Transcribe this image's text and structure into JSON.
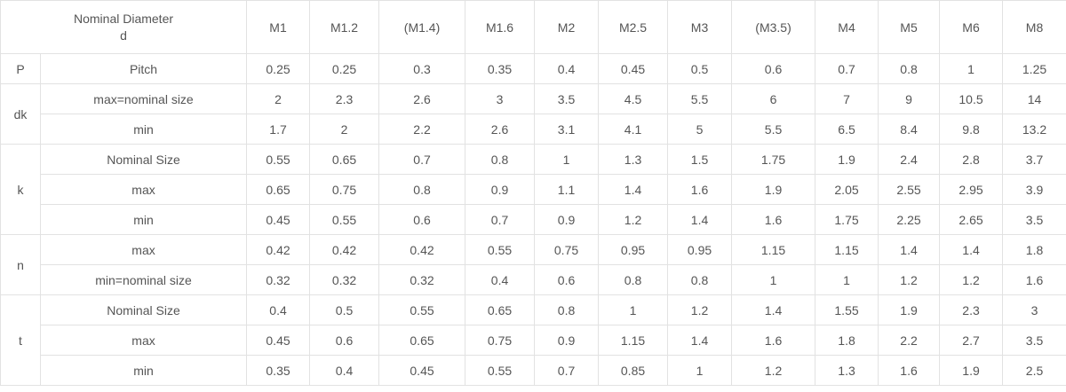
{
  "header": {
    "title_line1": "Nominal Diameter",
    "title_line2": "d",
    "sizes": [
      "M1",
      "M1.2",
      "(M1.4)",
      "M1.6",
      "M2",
      "M2.5",
      "M3",
      "(M3.5)",
      "M4",
      "M5",
      "M6",
      "M8"
    ]
  },
  "groups": [
    {
      "symbol": "P",
      "rows": [
        {
          "label": "Pitch",
          "values": [
            "0.25",
            "0.25",
            "0.3",
            "0.35",
            "0.4",
            "0.45",
            "0.5",
            "0.6",
            "0.7",
            "0.8",
            "1",
            "1.25"
          ]
        }
      ]
    },
    {
      "symbol": "dk",
      "rows": [
        {
          "label": "max=nominal size",
          "values": [
            "2",
            "2.3",
            "2.6",
            "3",
            "3.5",
            "4.5",
            "5.5",
            "6",
            "7",
            "9",
            "10.5",
            "14"
          ]
        },
        {
          "label": "min",
          "values": [
            "1.7",
            "2",
            "2.2",
            "2.6",
            "3.1",
            "4.1",
            "5",
            "5.5",
            "6.5",
            "8.4",
            "9.8",
            "13.2"
          ]
        }
      ]
    },
    {
      "symbol": "k",
      "rows": [
        {
          "label": "Nominal Size",
          "values": [
            "0.55",
            "0.65",
            "0.7",
            "0.8",
            "1",
            "1.3",
            "1.5",
            "1.75",
            "1.9",
            "2.4",
            "2.8",
            "3.7"
          ]
        },
        {
          "label": "max",
          "values": [
            "0.65",
            "0.75",
            "0.8",
            "0.9",
            "1.1",
            "1.4",
            "1.6",
            "1.9",
            "2.05",
            "2.55",
            "2.95",
            "3.9"
          ]
        },
        {
          "label": "min",
          "values": [
            "0.45",
            "0.55",
            "0.6",
            "0.7",
            "0.9",
            "1.2",
            "1.4",
            "1.6",
            "1.75",
            "2.25",
            "2.65",
            "3.5"
          ]
        }
      ]
    },
    {
      "symbol": "n",
      "rows": [
        {
          "label": "max",
          "values": [
            "0.42",
            "0.42",
            "0.42",
            "0.55",
            "0.75",
            "0.95",
            "0.95",
            "1.15",
            "1.15",
            "1.4",
            "1.4",
            "1.8"
          ]
        },
        {
          "label": "min=nominal size",
          "values": [
            "0.32",
            "0.32",
            "0.32",
            "0.4",
            "0.6",
            "0.8",
            "0.8",
            "1",
            "1",
            "1.2",
            "1.2",
            "1.6"
          ]
        }
      ]
    },
    {
      "symbol": "t",
      "rows": [
        {
          "label": "Nominal Size",
          "values": [
            "0.4",
            "0.5",
            "0.55",
            "0.65",
            "0.8",
            "1",
            "1.2",
            "1.4",
            "1.55",
            "1.9",
            "2.3",
            "3"
          ]
        },
        {
          "label": "max",
          "values": [
            "0.45",
            "0.6",
            "0.65",
            "0.75",
            "0.9",
            "1.15",
            "1.4",
            "1.6",
            "1.8",
            "2.2",
            "2.7",
            "3.5"
          ]
        },
        {
          "label": "min",
          "values": [
            "0.35",
            "0.4",
            "0.45",
            "0.55",
            "0.7",
            "0.85",
            "1",
            "1.2",
            "1.3",
            "1.6",
            "1.9",
            "2.5"
          ]
        }
      ]
    }
  ]
}
